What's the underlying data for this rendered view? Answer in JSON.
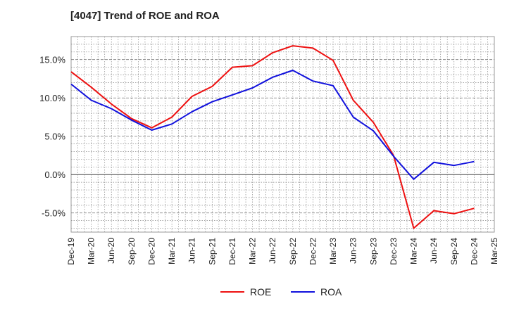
{
  "chart_data": {
    "type": "line",
    "title": "[4047]  Trend of ROE and ROA",
    "xlabel": "",
    "ylabel": "",
    "categories": [
      "Dec-19",
      "Mar-20",
      "Jun-20",
      "Sep-20",
      "Dec-20",
      "Mar-21",
      "Jun-21",
      "Sep-21",
      "Dec-21",
      "Mar-22",
      "Jun-22",
      "Sep-22",
      "Dec-22",
      "Mar-23",
      "Jun-23",
      "Sep-23",
      "Dec-23",
      "Mar-24",
      "Jun-24",
      "Sep-24",
      "Dec-24",
      "Mar-25"
    ],
    "ylim": [
      -7.5,
      18
    ],
    "yticks": [
      -5.0,
      0.0,
      5.0,
      10.0,
      15.0
    ],
    "ytick_labels": [
      "-5.0%",
      "0.0%",
      "5.0%",
      "10.0%",
      "15.0%"
    ],
    "grid": true,
    "legend_position": "bottom-center",
    "series": [
      {
        "name": "ROE",
        "color": "#ee1111",
        "values": [
          13.4,
          11.4,
          9.2,
          7.3,
          6.1,
          7.5,
          10.2,
          11.5,
          14.0,
          14.2,
          15.9,
          16.8,
          16.5,
          14.9,
          9.7,
          6.8,
          2.5,
          -7.0,
          -4.7,
          -5.1,
          -4.4,
          null
        ]
      },
      {
        "name": "ROA",
        "color": "#1111dd",
        "values": [
          11.8,
          9.7,
          8.6,
          7.1,
          5.8,
          6.6,
          8.2,
          9.5,
          10.4,
          11.3,
          12.7,
          13.6,
          12.2,
          11.6,
          7.5,
          5.7,
          2.4,
          -0.6,
          1.6,
          1.2,
          1.7,
          null
        ]
      }
    ]
  }
}
